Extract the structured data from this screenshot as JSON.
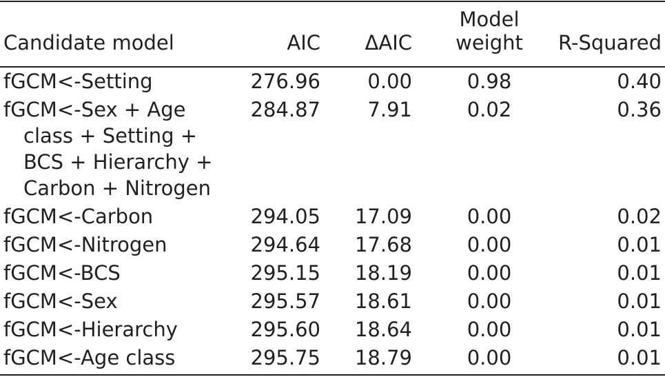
{
  "table": {
    "headers": {
      "model": "Candidate model",
      "aic": "AIC",
      "delta_aic": "ΔAIC",
      "weight_line1": "Model",
      "weight_line2": "weight",
      "r_squared": "R-Squared"
    },
    "rows": [
      {
        "model": "fGCM<-Setting",
        "aic": "276.96",
        "delta_aic": "0.00",
        "weight": "0.98",
        "r_squared": "0.40"
      },
      {
        "model": "fGCM<-Sex + Age",
        "model_cont": [
          "class + Setting +",
          "BCS + Hierarchy +",
          "Carbon + Nitrogen"
        ],
        "aic": "284.87",
        "delta_aic": "7.91",
        "weight": "0.02",
        "r_squared": "0.36"
      },
      {
        "model": "fGCM<-Carbon",
        "aic": "294.05",
        "delta_aic": "17.09",
        "weight": "0.00",
        "r_squared": "0.02"
      },
      {
        "model": "fGCM<-Nitrogen",
        "aic": "294.64",
        "delta_aic": "17.68",
        "weight": "0.00",
        "r_squared": "0.01"
      },
      {
        "model": "fGCM<-BCS",
        "aic": "295.15",
        "delta_aic": "18.19",
        "weight": "0.00",
        "r_squared": "0.01"
      },
      {
        "model": "fGCM<-Sex",
        "aic": "295.57",
        "delta_aic": "18.61",
        "weight": "0.00",
        "r_squared": "0.01"
      },
      {
        "model": "fGCM<-Hierarchy",
        "aic": "295.60",
        "delta_aic": "18.64",
        "weight": "0.00",
        "r_squared": "0.01"
      },
      {
        "model": "fGCM<-Age class",
        "aic": "295.75",
        "delta_aic": "18.79",
        "weight": "0.00",
        "r_squared": "0.01"
      }
    ]
  }
}
